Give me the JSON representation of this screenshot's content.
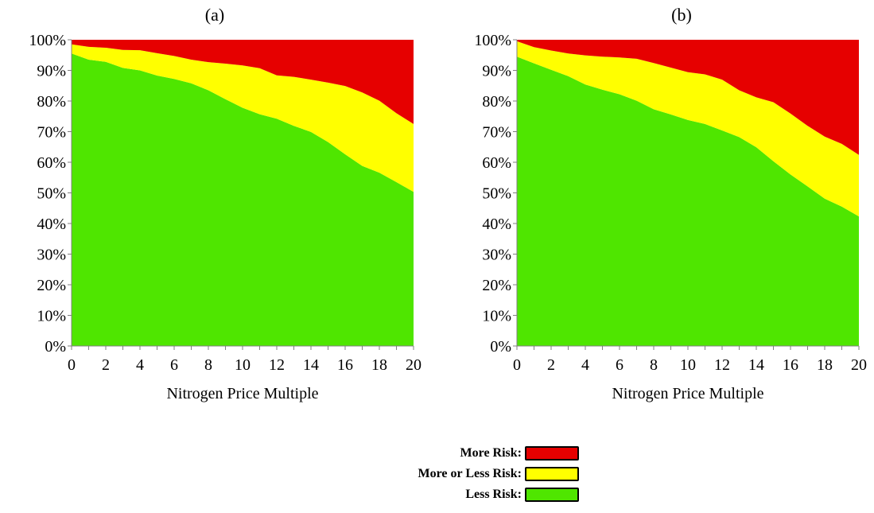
{
  "chart_data": [
    {
      "type": "area",
      "title": "(a)",
      "xlabel": "Nitrogen Price Multiple",
      "ylabel": "",
      "xlim": [
        0,
        20
      ],
      "ylim": [
        0,
        100
      ],
      "x_ticks": [
        "0",
        "2",
        "4",
        "6",
        "8",
        "10",
        "12",
        "14",
        "16",
        "18",
        "20"
      ],
      "y_ticks": [
        "0%",
        "10%",
        "20%",
        "30%",
        "40%",
        "50%",
        "60%",
        "70%",
        "80%",
        "90%",
        "100%"
      ],
      "x": [
        0,
        1,
        2,
        3,
        4,
        5,
        6,
        7,
        8,
        9,
        10,
        11,
        12,
        13,
        14,
        15,
        16,
        17,
        18,
        19,
        20
      ],
      "series": [
        {
          "name": "Less Risk",
          "values": [
            95.5,
            93.5,
            92.8,
            90.8,
            90,
            88.3,
            87.2,
            85.8,
            83.5,
            80.6,
            77.8,
            75.7,
            74.2,
            71.9,
            69.9,
            66.6,
            62.6,
            58.8,
            56.6,
            53.5,
            50.3
          ]
        },
        {
          "name": "More or Less Risk",
          "values": [
            3,
            4.2,
            4.6,
            5.9,
            6.6,
            7.3,
            7.5,
            7.7,
            9.2,
            11.6,
            13.8,
            15,
            14.2,
            16,
            17.1,
            19.4,
            22.3,
            24,
            23.5,
            22.5,
            22.2
          ]
        },
        {
          "name": "More Risk",
          "values": [
            1.5,
            2.3,
            2.6,
            3.3,
            3.4,
            4.4,
            5.3,
            6.5,
            7.3,
            7.8,
            8.4,
            9.3,
            11.6,
            12.1,
            13,
            14,
            15.1,
            17.2,
            19.9,
            24,
            27.5
          ]
        }
      ],
      "stacked": true,
      "grid": false,
      "colors": {
        "Less Risk": "#4fe600",
        "More or Less Risk": "#ffff00",
        "More Risk": "#e60000"
      }
    },
    {
      "type": "area",
      "title": "(b)",
      "xlabel": "Nitrogen Price Multiple",
      "ylabel": "",
      "xlim": [
        0,
        20
      ],
      "ylim": [
        0,
        100
      ],
      "x_ticks": [
        "0",
        "2",
        "4",
        "6",
        "8",
        "10",
        "12",
        "14",
        "16",
        "18",
        "20"
      ],
      "y_ticks": [
        "0%",
        "10%",
        "20%",
        "30%",
        "40%",
        "50%",
        "60%",
        "70%",
        "80%",
        "90%",
        "100%"
      ],
      "x": [
        0,
        1,
        2,
        3,
        4,
        5,
        6,
        7,
        8,
        9,
        10,
        11,
        12,
        13,
        14,
        15,
        16,
        17,
        18,
        19,
        20
      ],
      "series": [
        {
          "name": "Less Risk",
          "values": [
            94.5,
            92.3,
            90.2,
            88.1,
            85.4,
            83.7,
            82.2,
            80.1,
            77.3,
            75.6,
            73.8,
            72.5,
            70.4,
            68.2,
            64.9,
            60.3,
            56,
            52.1,
            48.1,
            45.5,
            42.3
          ]
        },
        {
          "name": "More or Less Risk",
          "values": [
            5,
            5.3,
            6.3,
            7.4,
            9.5,
            10.8,
            12,
            13.7,
            15.1,
            15.3,
            15.6,
            16.2,
            16.6,
            15.3,
            16.3,
            19.3,
            19.9,
            19.8,
            20.3,
            20.5,
            20.1
          ]
        },
        {
          "name": "More Risk",
          "values": [
            0.5,
            2.4,
            3.5,
            4.5,
            5.1,
            5.5,
            5.8,
            6.2,
            7.6,
            9.1,
            10.6,
            11.3,
            13,
            16.5,
            18.8,
            20.4,
            24.1,
            28.1,
            31.6,
            34,
            37.6
          ]
        }
      ],
      "stacked": true,
      "grid": false,
      "colors": {
        "Less Risk": "#4fe600",
        "More or Less Risk": "#ffff00",
        "More Risk": "#e60000"
      }
    }
  ],
  "legend": {
    "placement": "bottom-center",
    "items": [
      {
        "label": "More Risk:",
        "color": "#e60000"
      },
      {
        "label": "More or Less Risk:",
        "color": "#ffff00"
      },
      {
        "label": "Less Risk:",
        "color": "#4fe600"
      }
    ]
  }
}
